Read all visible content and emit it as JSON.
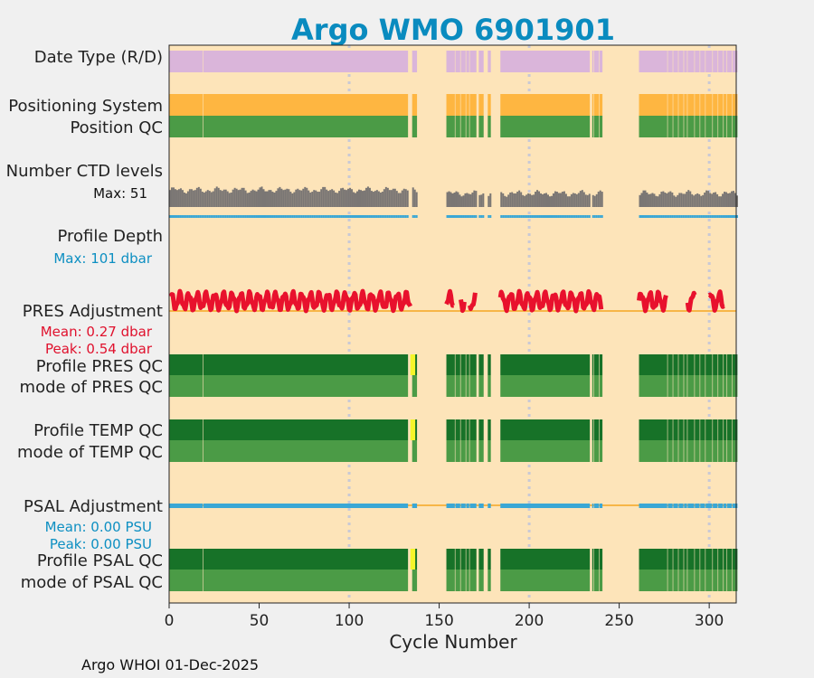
{
  "chart_data": {
    "type": "qc_timeline",
    "title": "Argo WMO 6901901",
    "xlabel": "Cycle Number",
    "xlim": [
      0,
      315
    ],
    "xticks": [
      0,
      50,
      100,
      150,
      200,
      250,
      300
    ],
    "footer": "Argo WHOI 01-Dec-2025",
    "colors": {
      "background": "#fde4b9",
      "date_type": "#dab5da",
      "positioning": "#feb641",
      "qc_good": "#4b9b46",
      "qc_good_dark": "#177228",
      "qc_flag": "#f5f52a",
      "ctd_levels": "#7a7674",
      "depth": "#3aa7d5",
      "pres_adjust": "#e8112d",
      "psal_adjust": "#3aa7d5",
      "zero_line": "#f5a623",
      "label_blue": "#0d8fc2",
      "label_red": "#e0112d"
    },
    "labels": {
      "date_type": "Date Type (R/D)",
      "positioning": "Positioning System",
      "position_qc": "Position QC",
      "ctd_levels": "Number CTD levels",
      "ctd_max": "Max: 51",
      "profile_depth": "Profile Depth",
      "depth_max": "Max:  101 dbar",
      "pres_adjust": "PRES Adjustment",
      "pres_mean": "Mean: 0.27 dbar",
      "pres_peak": "Peak: 0.54 dbar",
      "profile_pres_qc": "Profile PRES QC",
      "mode_pres_qc": "mode of PRES QC",
      "profile_temp_qc": "Profile TEMP QC",
      "mode_temp_qc": "mode of TEMP QC",
      "psal_adjust": "PSAL Adjustment",
      "psal_mean": "Mean: 0.00 PSU",
      "psal_peak": "Peak: 0.00 PSU",
      "profile_psal_qc": "Profile PSAL QC",
      "mode_psal_qc": "mode of PSAL QC"
    },
    "ctd_max_levels": 51,
    "depth_max_dbar": 101,
    "pres_mean_dbar": 0.27,
    "pres_peak_dbar": 0.54,
    "psal_mean_psu": 0.0,
    "psal_peak_psu": 0.0,
    "coverage_segments": [
      [
        0,
        18
      ],
      [
        19,
        132
      ],
      [
        135,
        137
      ],
      [
        154,
        158
      ],
      [
        159,
        161
      ],
      [
        162,
        164
      ],
      [
        165,
        166
      ],
      [
        167,
        170
      ],
      [
        172,
        174
      ],
      [
        177,
        178
      ],
      [
        184,
        233
      ],
      [
        235,
        235
      ],
      [
        236,
        238
      ],
      [
        239,
        240
      ],
      [
        261,
        276
      ],
      [
        277,
        279
      ],
      [
        280,
        282
      ],
      [
        283,
        285
      ],
      [
        286,
        287
      ],
      [
        288,
        291
      ],
      [
        292,
        294
      ],
      [
        295,
        297
      ],
      [
        298,
        301
      ],
      [
        302,
        304
      ],
      [
        305,
        307
      ],
      [
        308,
        309
      ],
      [
        310,
        312
      ],
      [
        313,
        315
      ]
    ],
    "profile_qc_flag_cycles": [
      [
        134,
        136
      ]
    ],
    "pres_adjust_segments": [
      [
        1,
        134
      ],
      [
        154,
        158
      ],
      [
        162,
        164
      ],
      [
        167,
        170
      ],
      [
        184,
        240
      ],
      [
        261,
        276
      ],
      [
        288,
        292
      ],
      [
        300,
        308
      ]
    ]
  }
}
